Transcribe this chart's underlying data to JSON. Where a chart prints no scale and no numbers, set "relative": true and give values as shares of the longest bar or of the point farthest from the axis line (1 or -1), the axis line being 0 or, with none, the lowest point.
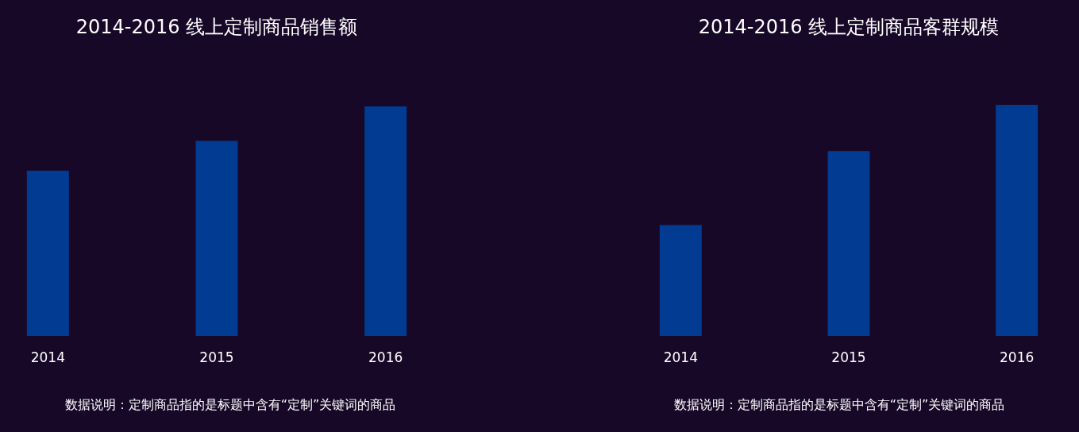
{
  "chart_data": [
    {
      "type": "bar",
      "title": "2014-2016 线上定制商品销售额",
      "categories": [
        "2014",
        "2015",
        "2016"
      ],
      "values": [
        0.72,
        0.85,
        1
      ],
      "relative": true,
      "color": "#013b92",
      "annotations": [
        "数据说明：定制商品指的是标题中含有“定制”关键词的商品"
      ]
    },
    {
      "type": "bar",
      "title": "2014-2016 线上定制商品客群规模",
      "categories": [
        "2014",
        "2015",
        "2016"
      ],
      "values": [
        0.48,
        0.8,
        1
      ],
      "relative": true,
      "color": "#013b92",
      "annotations": [
        "数据说明：定制商品指的是标题中含有“定制”关键词的商品"
      ]
    }
  ]
}
